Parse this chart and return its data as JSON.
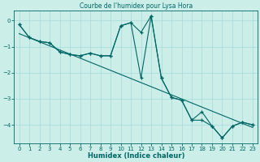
{
  "title": "Courbe de l'humidex pour Lysa Hora",
  "xlabel": "Humidex (Indice chaleur)",
  "background_color": "#cceee8",
  "line_color": "#006666",
  "grid_color": "#aadddd",
  "xlim": [
    -0.5,
    23.5
  ],
  "ylim": [
    -4.7,
    0.4
  ],
  "yticks": [
    0,
    -1,
    -2,
    -3,
    -4
  ],
  "xticks": [
    0,
    1,
    2,
    3,
    4,
    5,
    6,
    7,
    8,
    9,
    10,
    11,
    12,
    13,
    14,
    15,
    16,
    17,
    18,
    19,
    20,
    21,
    22,
    23
  ],
  "series1_x": [
    0,
    1,
    2,
    3,
    4,
    5,
    6,
    7,
    8,
    9,
    10,
    11,
    12,
    13,
    14,
    15,
    16,
    17,
    18,
    19,
    20,
    21,
    22,
    23
  ],
  "series1_y": [
    -0.15,
    -0.65,
    -0.8,
    -0.85,
    -1.2,
    -1.3,
    -1.35,
    -1.25,
    -1.35,
    -1.35,
    -0.2,
    -0.08,
    -0.45,
    0.18,
    -2.2,
    -2.95,
    -3.05,
    -3.82,
    -3.5,
    -4.05,
    -4.5,
    -4.05,
    -3.9,
    -4.0
  ],
  "series2_x": [
    0,
    1,
    2,
    3,
    4,
    5,
    6,
    7,
    8,
    9,
    10,
    11,
    12,
    13,
    14,
    15,
    16,
    17,
    18,
    19,
    20,
    21,
    22,
    23
  ],
  "series2_y": [
    -0.15,
    -0.65,
    -0.8,
    -0.85,
    -1.2,
    -1.3,
    -1.35,
    -1.25,
    -1.35,
    -1.35,
    -0.2,
    -0.08,
    -2.2,
    0.18,
    -2.2,
    -2.95,
    -3.05,
    -3.82,
    -3.82,
    -4.05,
    -4.5,
    -4.05,
    -3.9,
    -4.0
  ],
  "trend_x": [
    0,
    23
  ],
  "trend_y": [
    -0.5,
    -4.1
  ]
}
